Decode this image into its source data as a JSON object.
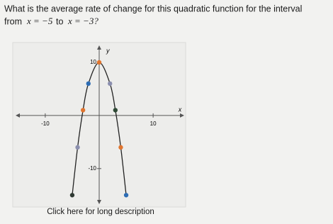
{
  "question": {
    "line1": "What is the average rate of change for this quadratic function for the interval",
    "from": "from",
    "start": "x = −5",
    "to": "to",
    "end": "x = −3?"
  },
  "chart_data": {
    "type": "scatter",
    "xlabel": "x",
    "ylabel": "y",
    "x": [
      -5,
      -4,
      -3,
      -2,
      0,
      2,
      3,
      4,
      5
    ],
    "values": [
      -15,
      -6,
      1,
      6,
      10,
      6,
      1,
      -6,
      -15
    ],
    "colors": [
      "#2f3a33",
      "#8b8fae",
      "#e0752f",
      "#2e6db4",
      "#e0752f",
      "#8b8fae",
      "#2f4a35",
      "#e0752f",
      "#2e6db4"
    ],
    "curve_color": "#222222",
    "xlim": [
      -15.5,
      15.5
    ],
    "ylim": [
      -16.7,
      13.2
    ],
    "xticks": [
      -10,
      10
    ],
    "yticks": [
      -10,
      10
    ]
  },
  "link": "Click here for long description"
}
